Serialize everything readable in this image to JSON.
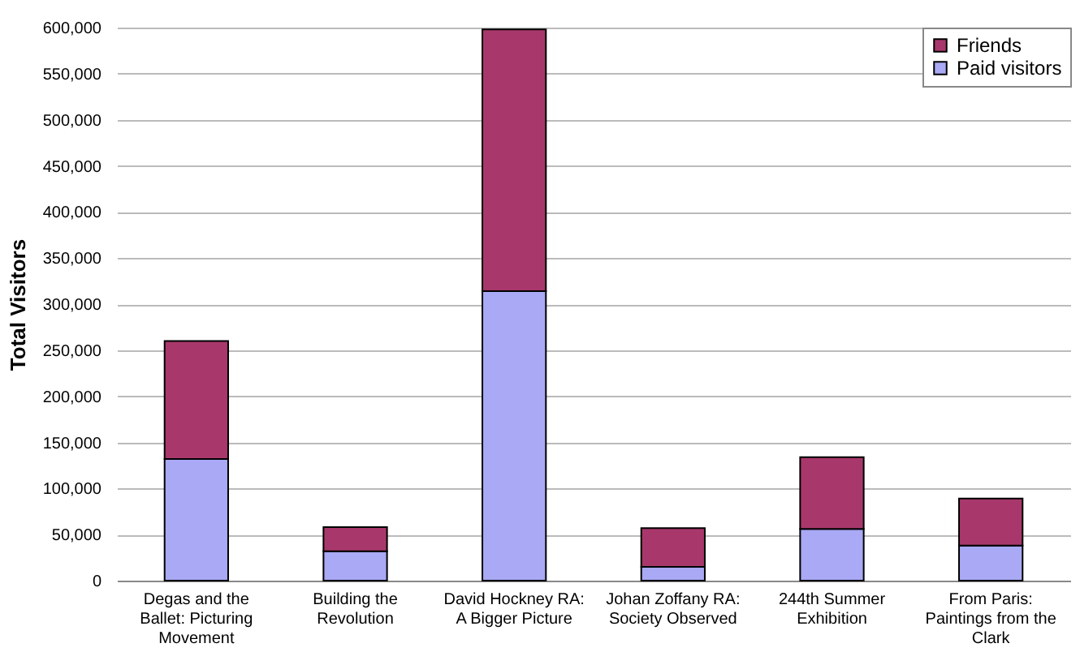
{
  "chart_data": {
    "type": "bar",
    "stacked": true,
    "ylabel": "Total Visitors",
    "categories": [
      "Degas and the Ballet: Picturing Movement",
      "Building the Revolution",
      "David Hockney RA: A Bigger Picture",
      "Johan Zoffany RA: Society Observed",
      "244th Summer Exhibition",
      "From Paris: Paintings from the Clark"
    ],
    "series": [
      {
        "name": "Paid visitors",
        "color": "#a9a9f5",
        "values": [
          132000,
          32000,
          314000,
          15000,
          56000,
          38000
        ]
      },
      {
        "name": "Friends",
        "color": "#a8386b",
        "values": [
          128000,
          26000,
          284000,
          42000,
          78000,
          51000
        ]
      }
    ],
    "ylim": [
      0,
      600000
    ],
    "yticks": [
      0,
      {
        "value": 50000,
        "label": "50,000"
      },
      {
        "value": 100000,
        "label": "100,000"
      },
      {
        "value": 150000,
        "label": "150,000"
      },
      {
        "value": 200000,
        "label": "200,000"
      },
      {
        "value": 250000,
        "label": "250,000"
      },
      {
        "value": 300000,
        "label": "300,000"
      },
      {
        "value": 350000,
        "label": "350,000"
      },
      {
        "value": 400000,
        "label": "400,000"
      },
      {
        "value": 450000,
        "label": "450,000"
      },
      {
        "value": 500000,
        "label": "500,000"
      },
      {
        "value": 550000,
        "label": "550,000"
      },
      {
        "value": 600000,
        "label": "600,000"
      }
    ],
    "grid": "y",
    "legend": "top right"
  }
}
